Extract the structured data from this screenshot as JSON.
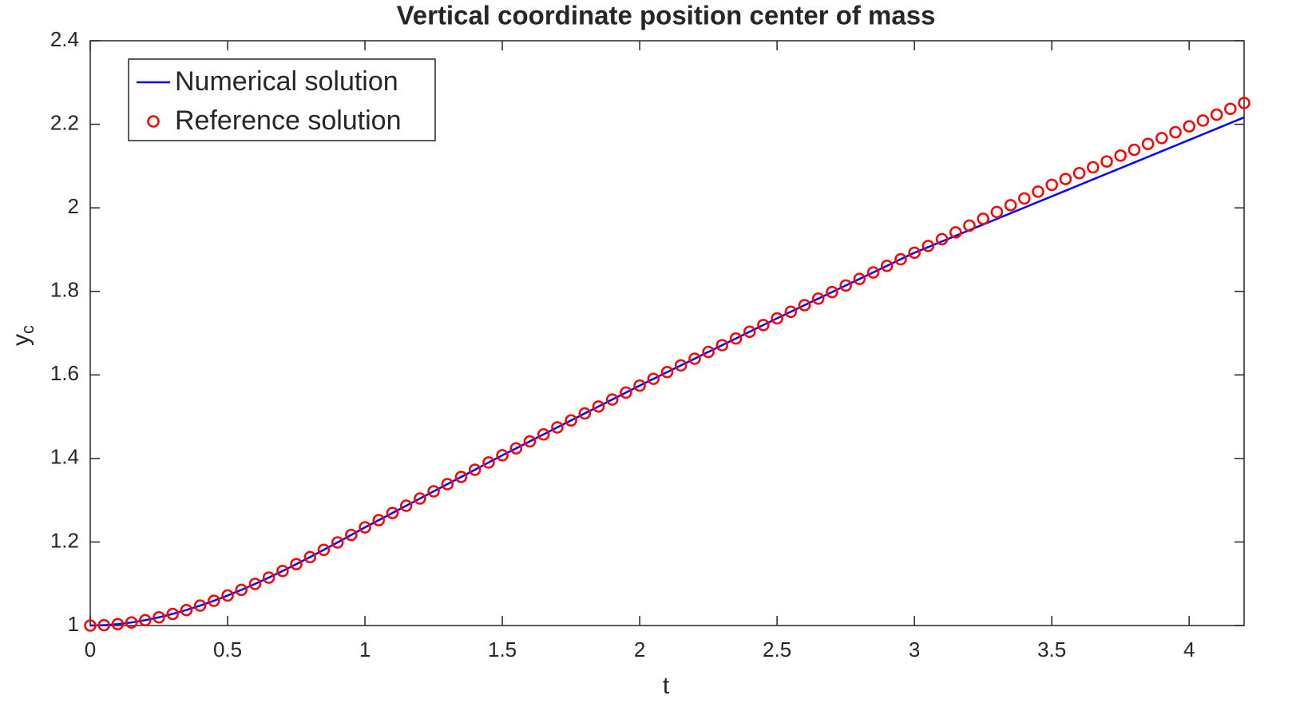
{
  "chart_data": {
    "type": "line",
    "title": "Vertical coordinate position center of mass",
    "xlabel": "t",
    "ylabel": {
      "text": "y",
      "subscript": "c"
    },
    "xlim": [
      0,
      4.2
    ],
    "ylim": [
      1,
      2.4
    ],
    "xticks": [
      0,
      0.5,
      1,
      1.5,
      2,
      2.5,
      3,
      3.5,
      4
    ],
    "yticks": [
      1,
      1.2,
      1.4,
      1.6,
      1.8,
      2,
      2.2,
      2.4
    ],
    "legend": "top-left",
    "x": [
      0,
      0.05,
      0.1,
      0.15,
      0.2,
      0.25,
      0.3,
      0.35,
      0.4,
      0.45,
      0.5,
      0.55,
      0.6,
      0.65,
      0.7,
      0.75,
      0.8,
      0.85,
      0.9,
      0.95,
      1,
      1.05,
      1.1,
      1.15,
      1.2,
      1.25,
      1.3,
      1.35,
      1.4,
      1.45,
      1.5,
      1.55,
      1.6,
      1.65,
      1.7,
      1.75,
      1.8,
      1.85,
      1.9,
      1.95,
      2,
      2.05,
      2.1,
      2.15,
      2.2,
      2.25,
      2.3,
      2.35,
      2.4,
      2.45,
      2.5,
      2.55,
      2.6,
      2.65,
      2.7,
      2.75,
      2.8,
      2.85,
      2.9,
      2.95,
      3,
      3.05,
      3.1,
      3.15,
      3.2,
      3.25,
      3.3,
      3.35,
      3.4,
      3.45,
      3.5,
      3.55,
      3.6,
      3.65,
      3.7,
      3.75,
      3.8,
      3.85,
      3.9,
      3.95,
      4,
      4.05,
      4.1,
      4.15,
      4.2
    ],
    "series": [
      {
        "name": "Numerical solution",
        "color": "#0000ff",
        "marker": "line",
        "values": [
          1,
          1.0008,
          1.0033,
          1.0073,
          1.0128,
          1.0196,
          1.0278,
          1.0371,
          1.0477,
          1.0593,
          1.0719,
          1.0854,
          1.0997,
          1.1148,
          1.1306,
          1.147,
          1.1638,
          1.1812,
          1.1989,
          1.2168,
          1.235,
          1.2523,
          1.2695,
          1.2868,
          1.304,
          1.3213,
          1.3385,
          1.3558,
          1.373,
          1.3903,
          1.4075,
          1.4242,
          1.4409,
          1.4576,
          1.4743,
          1.491,
          1.5077,
          1.5244,
          1.5411,
          1.5578,
          1.5745,
          1.5906,
          1.6067,
          1.6228,
          1.6389,
          1.655,
          1.6711,
          1.6872,
          1.7033,
          1.7194,
          1.7355,
          1.7512,
          1.7669,
          1.7826,
          1.7983,
          1.814,
          1.8297,
          1.8454,
          1.8611,
          1.8768,
          1.8925,
          1.906,
          1.9195,
          1.933,
          1.9465,
          1.96,
          1.9735,
          1.987,
          2.0005,
          2.014,
          2.0275,
          2.041,
          2.0545,
          2.068,
          2.0815,
          2.095,
          2.1085,
          2.122,
          2.1355,
          2.149,
          2.1625,
          2.176,
          2.1895,
          2.203,
          2.2165
        ]
      },
      {
        "name": "Reference solution",
        "color": "#ff0000",
        "marker": "circle",
        "values": [
          1,
          1.0008,
          1.0033,
          1.0073,
          1.0128,
          1.0196,
          1.0278,
          1.0371,
          1.0477,
          1.0593,
          1.0719,
          1.0854,
          1.0997,
          1.1148,
          1.1306,
          1.147,
          1.1638,
          1.1812,
          1.1989,
          1.2168,
          1.235,
          1.2523,
          1.2695,
          1.2868,
          1.304,
          1.3213,
          1.3385,
          1.3558,
          1.373,
          1.3903,
          1.4075,
          1.4242,
          1.4409,
          1.4576,
          1.4743,
          1.491,
          1.5077,
          1.5244,
          1.5411,
          1.5578,
          1.5745,
          1.5906,
          1.6067,
          1.6228,
          1.6389,
          1.655,
          1.6711,
          1.6872,
          1.7033,
          1.7194,
          1.7355,
          1.7512,
          1.7669,
          1.7826,
          1.7983,
          1.814,
          1.8297,
          1.8454,
          1.8611,
          1.8768,
          1.8925,
          1.9088,
          1.925,
          1.9413,
          1.9575,
          1.9738,
          1.99,
          2.0063,
          2.0225,
          2.0388,
          2.055,
          2.069,
          2.083,
          2.097,
          2.111,
          2.125,
          2.139,
          2.153,
          2.167,
          2.181,
          2.195,
          2.209,
          2.223,
          2.237,
          2.251
        ]
      }
    ]
  }
}
